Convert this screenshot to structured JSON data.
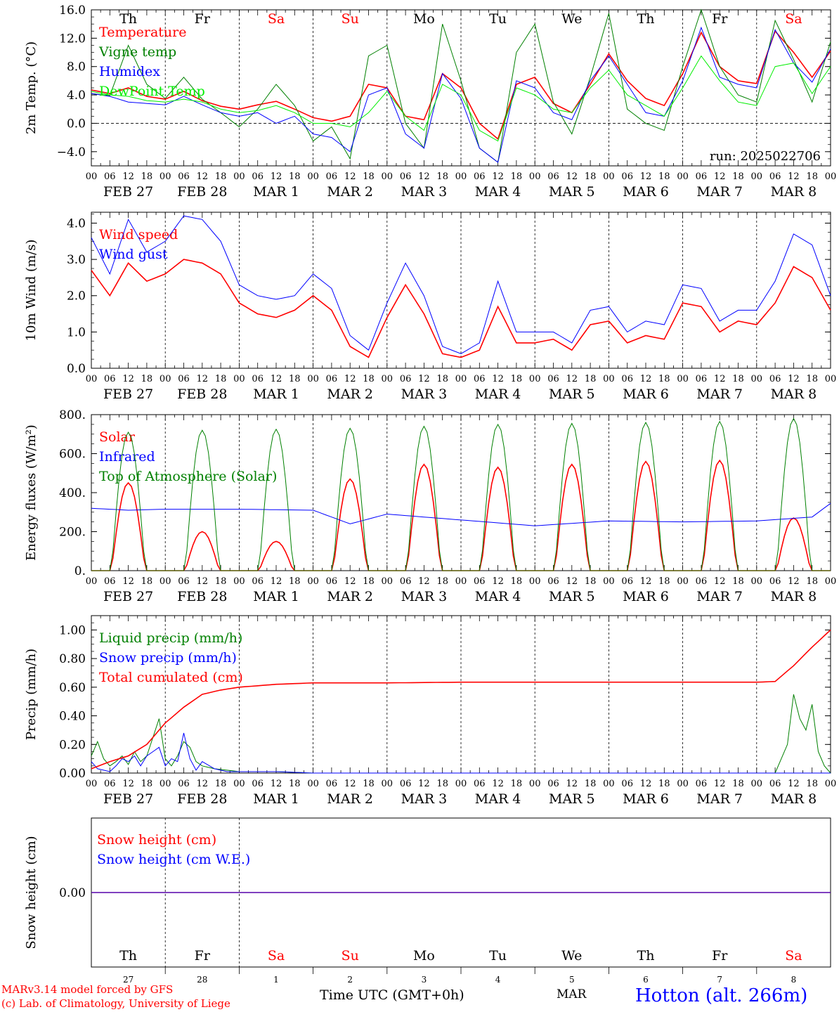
{
  "days": {
    "names": [
      "Th",
      "Fr",
      "Sa",
      "Su",
      "Mo",
      "Tu",
      "We",
      "Th",
      "Fr",
      "Sa"
    ],
    "weekend_color": "#ff0000",
    "weekday_color": "#000000",
    "date_labels": [
      "FEB 27",
      "FEB 28",
      "MAR  1",
      "MAR  2",
      "MAR  3",
      "MAR  4",
      "MAR  5",
      "MAR  6",
      "MAR  7",
      "MAR  8"
    ],
    "hour_ticks": [
      "00",
      "06",
      "12",
      "18"
    ],
    "end_tick": "00",
    "day_numbers": [
      "27",
      "28",
      "1",
      "2",
      "3",
      "4",
      "5",
      "6",
      "7",
      "8"
    ]
  },
  "footer": {
    "model_line": "MARv3.14 model forced by GFS",
    "lab_line": "(c) Lab. of Climatology, University of Liege",
    "xlabel": "Time UTC (GMT+0h)",
    "month": "MAR",
    "station": "Hotton (alt. 266m)"
  },
  "colors": {
    "red": "#ff0000",
    "green": "#008000",
    "blue": "#0000ff",
    "lime": "#00ee00"
  },
  "chart_data": [
    {
      "type": "line",
      "ylabel": "2m Temp. (°C)",
      "ylim": [
        -6,
        16
      ],
      "yticks": [
        -4,
        0,
        4,
        8,
        12,
        16
      ],
      "ytick_labels": [
        "−4.0",
        "0.0",
        "4.0",
        "8.0",
        "12.0",
        "16.0"
      ],
      "zero_line": true,
      "annotation": "run: 2025022706",
      "x_hours": [
        0,
        6,
        12,
        18,
        24,
        30,
        36,
        42,
        48,
        54,
        60,
        66,
        72,
        78,
        84,
        90,
        96,
        102,
        108,
        114,
        120,
        126,
        132,
        138,
        144,
        150,
        156,
        162,
        168,
        174,
        180,
        186,
        192,
        198,
        204,
        210,
        216,
        222,
        228,
        234,
        240
      ],
      "series": [
        {
          "name": "Temperature",
          "color": "red",
          "values": [
            4.7,
            4.2,
            5.0,
            3.8,
            3.4,
            4.5,
            3.2,
            2.4,
            2.0,
            2.6,
            3.1,
            2.0,
            0.8,
            0.3,
            1.0,
            5.5,
            5.0,
            1.0,
            0.5,
            7.0,
            5.0,
            0.0,
            -2.2,
            5.5,
            6.5,
            2.8,
            1.5,
            5.5,
            9.8,
            6.0,
            3.5,
            2.5,
            7.0,
            12.8,
            8.0,
            6.0,
            5.6,
            13.0,
            10.0,
            6.5,
            10.2
          ]
        },
        {
          "name": "Vigne temp",
          "color": "green",
          "values": [
            4.2,
            3.9,
            11.0,
            5.5,
            3.5,
            6.5,
            3.4,
            1.5,
            -0.5,
            2.0,
            5.5,
            2.5,
            -2.5,
            -0.5,
            -5.0,
            9.5,
            11.0,
            0.0,
            -3.5,
            14.0,
            6.0,
            -3.5,
            -5.5,
            10.0,
            14.0,
            3.0,
            -1.5,
            6.5,
            15.5,
            2.0,
            0.0,
            -1.0,
            8.0,
            16.0,
            8.0,
            4.0,
            3.0,
            14.5,
            9.0,
            3.0,
            11.5
          ]
        },
        {
          "name": "Humidex",
          "color": "blue",
          "values": [
            4.2,
            3.8,
            3.0,
            2.8,
            2.6,
            3.8,
            2.6,
            1.5,
            1.0,
            1.5,
            0.0,
            1.0,
            -1.5,
            -2.0,
            -4.0,
            4.0,
            5.0,
            -1.5,
            -3.5,
            7.0,
            3.5,
            -3.5,
            -5.5,
            6.0,
            5.0,
            1.5,
            0.5,
            6.0,
            9.5,
            5.5,
            1.5,
            1.0,
            6.0,
            13.5,
            6.5,
            5.5,
            5.0,
            13.2,
            8.5,
            5.8,
            10.5
          ]
        },
        {
          "name": "DewPoint Temp",
          "color": "lime",
          "values": [
            4.5,
            4.0,
            3.8,
            3.2,
            3.0,
            3.4,
            3.0,
            2.0,
            1.5,
            1.8,
            2.5,
            1.5,
            0.0,
            0.0,
            -0.5,
            1.5,
            4.5,
            1.0,
            -1.0,
            5.5,
            4.0,
            -1.0,
            -2.5,
            5.0,
            4.0,
            2.0,
            1.5,
            5.0,
            7.5,
            4.0,
            2.5,
            1.0,
            5.0,
            9.5,
            6.0,
            3.0,
            2.5,
            8.0,
            8.5,
            4.2,
            8.0
          ]
        }
      ]
    },
    {
      "type": "line",
      "ylabel": "10m Wind (m/s)",
      "ylim": [
        0,
        4.3
      ],
      "yticks": [
        0,
        1,
        2,
        3,
        4
      ],
      "ytick_labels": [
        "0.0",
        "1.0",
        "2.0",
        "3.0",
        "4.0"
      ],
      "x_hours": [
        0,
        6,
        12,
        18,
        24,
        30,
        36,
        42,
        48,
        54,
        60,
        66,
        72,
        78,
        84,
        90,
        96,
        102,
        108,
        114,
        120,
        126,
        132,
        138,
        144,
        150,
        156,
        162,
        168,
        174,
        180,
        186,
        192,
        198,
        204,
        210,
        216,
        222,
        228,
        234,
        240
      ],
      "series": [
        {
          "name": "Wind speed",
          "color": "red",
          "values": [
            2.7,
            2.0,
            2.9,
            2.4,
            2.6,
            3.0,
            2.9,
            2.6,
            1.8,
            1.5,
            1.4,
            1.6,
            2.0,
            1.6,
            0.6,
            0.3,
            1.4,
            2.3,
            1.5,
            0.4,
            0.3,
            0.5,
            1.7,
            0.7,
            0.7,
            0.8,
            0.5,
            1.2,
            1.3,
            0.7,
            0.9,
            0.8,
            1.8,
            1.7,
            1.0,
            1.3,
            1.2,
            1.8,
            2.8,
            2.5,
            1.6
          ]
        },
        {
          "name": "Wind gust",
          "color": "blue",
          "values": [
            3.6,
            2.6,
            4.1,
            3.2,
            3.5,
            4.2,
            4.1,
            3.5,
            2.3,
            2.0,
            1.9,
            2.0,
            2.6,
            2.2,
            0.9,
            0.5,
            1.8,
            2.9,
            2.0,
            0.6,
            0.4,
            0.7,
            2.4,
            1.0,
            1.0,
            1.0,
            0.7,
            1.6,
            1.7,
            1.0,
            1.3,
            1.2,
            2.3,
            2.2,
            1.3,
            1.6,
            1.6,
            2.4,
            3.7,
            3.4,
            2.0
          ]
        }
      ]
    },
    {
      "type": "line",
      "ylabel": "Energy fluxes (W/m²)",
      "ylim": [
        0,
        800
      ],
      "yticks": [
        0,
        200,
        400,
        600,
        800
      ],
      "ytick_labels": [
        "0.",
        "200.",
        "400.",
        "600.",
        "800."
      ],
      "series": [
        {
          "name": "Solar",
          "color": "red",
          "peaks": [
            450,
            200,
            150,
            470,
            545,
            530,
            545,
            560,
            565,
            270
          ]
        },
        {
          "name": "Infrared",
          "color": "blue",
          "x_hours": [
            0,
            12,
            24,
            48,
            72,
            84,
            96,
            120,
            144,
            168,
            192,
            216,
            234,
            240
          ],
          "values": [
            320,
            310,
            315,
            315,
            310,
            240,
            290,
            260,
            230,
            255,
            250,
            255,
            275,
            345
          ]
        },
        {
          "name": "Top of Atmosphere (Solar)",
          "color": "green",
          "peaks": [
            710,
            720,
            725,
            730,
            740,
            750,
            755,
            760,
            765,
            780
          ]
        }
      ]
    },
    {
      "type": "line",
      "ylabel": "Precip (mm/h)",
      "ylim": [
        0,
        1.1
      ],
      "yticks": [
        0,
        0.2,
        0.4,
        0.6,
        0.8,
        1.0
      ],
      "ytick_labels": [
        "0.00",
        "0.20",
        "0.40",
        "0.60",
        "0.80",
        "1.00"
      ],
      "series": [
        {
          "name": "Liquid precip (mm/h)",
          "color": "green",
          "x_hours": [
            0,
            2,
            4,
            6,
            8,
            10,
            12,
            14,
            16,
            18,
            20,
            22,
            24,
            26,
            28,
            30,
            32,
            34,
            36,
            40,
            44,
            48,
            60,
            72,
            96,
            204,
            222,
            226,
            228,
            230,
            232,
            234,
            236,
            238,
            240
          ],
          "values": [
            0.12,
            0.22,
            0.1,
            0.05,
            0.08,
            0.12,
            0.06,
            0.15,
            0.08,
            0.12,
            0.25,
            0.38,
            0.1,
            0.05,
            0.12,
            0.22,
            0.18,
            0.08,
            0.05,
            0.03,
            0.02,
            0.01,
            0.01,
            0.0,
            0.0,
            0.0,
            0.0,
            0.2,
            0.55,
            0.38,
            0.3,
            0.48,
            0.15,
            0.05,
            0.0
          ]
        },
        {
          "name": "Snow precip (mm/h)",
          "color": "blue",
          "x_hours": [
            0,
            2,
            4,
            6,
            8,
            10,
            12,
            14,
            16,
            18,
            20,
            22,
            24,
            26,
            28,
            30,
            32,
            34,
            36,
            40,
            44,
            48,
            60,
            72,
            240
          ],
          "values": [
            0.08,
            0.03,
            0.02,
            0.01,
            0.05,
            0.1,
            0.08,
            0.12,
            0.05,
            0.12,
            0.15,
            0.18,
            0.05,
            0.1,
            0.08,
            0.28,
            0.1,
            0.02,
            0.08,
            0.03,
            0.01,
            0.01,
            0.01,
            0.0,
            0.0
          ]
        },
        {
          "name": "Total cumulated (cm)",
          "color": "red",
          "x_hours": [
            0,
            6,
            12,
            18,
            24,
            30,
            36,
            42,
            48,
            60,
            72,
            96,
            120,
            144,
            168,
            192,
            216,
            222,
            228,
            234,
            240
          ],
          "values": [
            0.03,
            0.08,
            0.12,
            0.2,
            0.35,
            0.46,
            0.55,
            0.58,
            0.6,
            0.62,
            0.63,
            0.63,
            0.635,
            0.635,
            0.635,
            0.635,
            0.635,
            0.64,
            0.75,
            0.88,
            1.0
          ]
        }
      ]
    },
    {
      "type": "line",
      "ylabel": "Snow height (cm)",
      "ylim": [
        -1,
        1
      ],
      "yticks": [
        0
      ],
      "ytick_labels": [
        "0.00"
      ],
      "series": [
        {
          "name": "Snow height (cm)",
          "color": "red",
          "x_hours": [
            0,
            240
          ],
          "values": [
            0,
            0
          ]
        },
        {
          "name": "Snow height (cm W.E.)",
          "color": "blue",
          "x_hours": [
            0,
            240
          ],
          "values": [
            0,
            0
          ]
        }
      ]
    }
  ]
}
